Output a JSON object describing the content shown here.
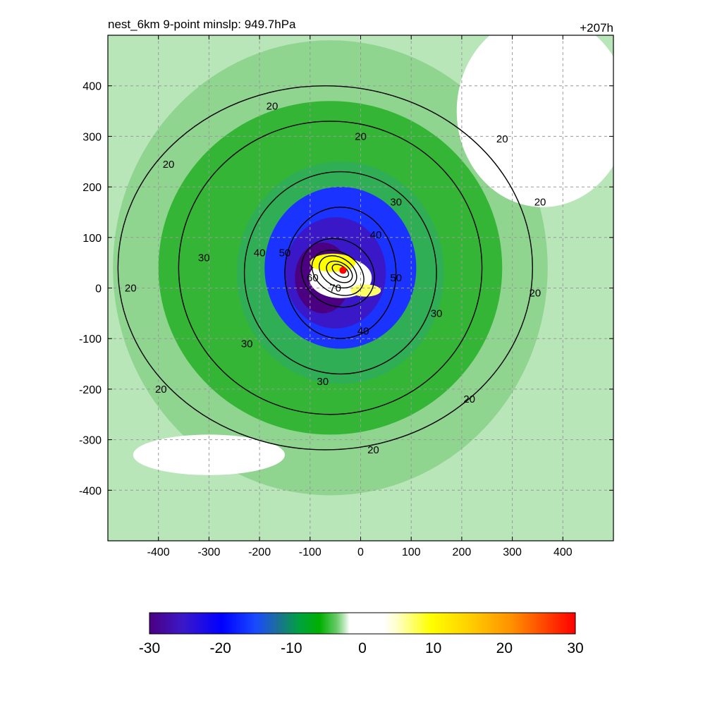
{
  "header": {
    "title": "nest_6km  9-point minslp: 949.7hPa",
    "lead_time": "+207h"
  },
  "chart_data": {
    "type": "heatmap",
    "title": "nest_6km  9-point minslp: 949.7hPa",
    "annotation": "+207h",
    "xlabel": "",
    "ylabel": "",
    "xlim": [
      -500,
      500
    ],
    "ylim": [
      -500,
      500
    ],
    "x_ticks": [
      -400,
      -300,
      -200,
      -100,
      0,
      100,
      200,
      300,
      400
    ],
    "y_ticks": [
      400,
      300,
      200,
      100,
      0,
      -100,
      -200,
      -300,
      -400
    ],
    "grid": true,
    "colorbar": {
      "min": -30,
      "max": 30,
      "ticks": [
        -30,
        -20,
        -10,
        0,
        10,
        20,
        30
      ],
      "colors": [
        "#4b0082",
        "#0000ff",
        "#00a000",
        "#b8e6b8",
        "#ffffff",
        "#ffff00",
        "#ff8c00",
        "#ff0000"
      ]
    },
    "storm_center": {
      "x": -35,
      "y": 35,
      "color": "#ff0000"
    },
    "fill_regions": [
      {
        "level": -8,
        "cx": -60,
        "cy": 40,
        "rx": 430,
        "ry": 450,
        "color": "#8fd48f"
      },
      {
        "level": -12,
        "cx": -60,
        "cy": 40,
        "rx": 340,
        "ry": 330,
        "color": "#35b535"
      },
      {
        "level": -14,
        "cx": -40,
        "cy": 30,
        "rx": 205,
        "ry": 220,
        "color": "#2fae55"
      },
      {
        "level": -20,
        "cx": -40,
        "cy": 40,
        "rx": 150,
        "ry": 160,
        "color": "#1a33ff"
      },
      {
        "level": -24,
        "cx": -50,
        "cy": 30,
        "rx": 100,
        "ry": 110,
        "color": "#3a18c8"
      },
      {
        "level": -28,
        "cx": -75,
        "cy": 20,
        "rx": 55,
        "ry": 70,
        "color": "#4b0082"
      },
      {
        "level": -2,
        "cx": -40,
        "cy": 20,
        "rx": 62,
        "ry": 40,
        "color": "#ffffff"
      },
      {
        "level": 8,
        "cx": -55,
        "cy": 50,
        "rx": 45,
        "ry": 18,
        "color": "#ffff00"
      },
      {
        "level": 6,
        "cx": 10,
        "cy": -5,
        "rx": 30,
        "ry": 12,
        "color": "#ffff66"
      },
      {
        "level": 0,
        "cx": 360,
        "cy": 350,
        "rx": 170,
        "ry": 190,
        "color": "#ffffff"
      },
      {
        "level": 0,
        "cx": -300,
        "cy": -330,
        "rx": 150,
        "ry": 40,
        "color": "#ffffff"
      }
    ],
    "contour_labels": [
      {
        "text": "20",
        "x": -175,
        "y": 360
      },
      {
        "text": "20",
        "x": 0,
        "y": 300
      },
      {
        "text": "20",
        "x": 280,
        "y": 295
      },
      {
        "text": "20",
        "x": -380,
        "y": 245
      },
      {
        "text": "20",
        "x": 355,
        "y": 170
      },
      {
        "text": "20",
        "x": -455,
        "y": 0
      },
      {
        "text": "20",
        "x": 345,
        "y": -10
      },
      {
        "text": "20",
        "x": -395,
        "y": -200
      },
      {
        "text": "20",
        "x": 215,
        "y": -220
      },
      {
        "text": "20",
        "x": 25,
        "y": -320
      },
      {
        "text": "30",
        "x": -310,
        "y": 60
      },
      {
        "text": "30",
        "x": -225,
        "y": -110
      },
      {
        "text": "30",
        "x": 70,
        "y": 170
      },
      {
        "text": "30",
        "x": 150,
        "y": -50
      },
      {
        "text": "30",
        "x": -75,
        "y": -185
      },
      {
        "text": "40",
        "x": -200,
        "y": 70
      },
      {
        "text": "40",
        "x": 30,
        "y": 105
      },
      {
        "text": "40",
        "x": 5,
        "y": -85
      },
      {
        "text": "50",
        "x": -150,
        "y": 70
      },
      {
        "text": "50",
        "x": 70,
        "y": 20
      },
      {
        "text": "60",
        "x": -95,
        "y": 20
      },
      {
        "text": "70",
        "x": -50,
        "y": 0
      }
    ]
  }
}
